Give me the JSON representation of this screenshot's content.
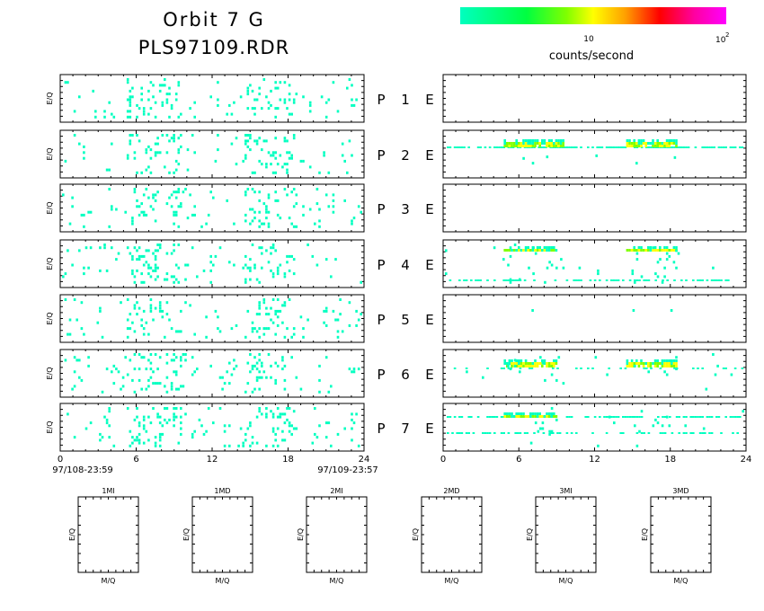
{
  "header": {
    "title_line1": "Orbit 7 G",
    "title_line2": "PLS97109.RDR"
  },
  "colorbar": {
    "label": "counts/second",
    "tick_10": "10",
    "tick_100_base": "10",
    "tick_100_exp": "2",
    "scale": "log",
    "stops": [
      "#00ffc0",
      "#00ff40",
      "#80ff00",
      "#ffff00",
      "#ffa000",
      "#ff0000",
      "#ff00a0",
      "#ff00ff"
    ]
  },
  "panels": {
    "ylabel": "E/Q",
    "p_labels": [
      "P",
      "P",
      "P",
      "P",
      "P",
      "P",
      "P"
    ],
    "numbers": [
      "1",
      "2",
      "3",
      "4",
      "5",
      "6",
      "7"
    ],
    "e_labels": [
      "E",
      "E",
      "E",
      "E",
      "E",
      "E",
      "E"
    ]
  },
  "time_axis": {
    "ticks": [
      "0",
      "6",
      "12",
      "18",
      "24"
    ],
    "start_label": "97/108-23:59",
    "end_label": "97/109-23:57"
  },
  "mass_panels": {
    "titles": [
      "1MI",
      "1MD",
      "2MI",
      "2MD",
      "3MI",
      "3MD"
    ],
    "xlabel": "M/Q",
    "ylabel": "E/Q"
  },
  "chart_data": {
    "type": "heatmap",
    "x_range": [
      0,
      24
    ],
    "x_unit": "hours",
    "left_panels_active": [
      1,
      2,
      3,
      4,
      5,
      6,
      7
    ],
    "right_panels_active": [
      2,
      4,
      6,
      7
    ],
    "color_scale": "log",
    "color_range": [
      1,
      100
    ],
    "activity_hours": [
      [
        5,
        9.5
      ],
      [
        14.5,
        18.5
      ]
    ]
  },
  "colors": {
    "frame": "#000000",
    "low": "#00ffc0",
    "mid": "#80ff00",
    "high": "#ffff00"
  }
}
